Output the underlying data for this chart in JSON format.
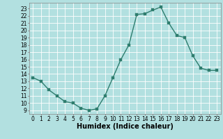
{
  "x": [
    0,
    1,
    2,
    3,
    4,
    5,
    6,
    7,
    8,
    9,
    10,
    11,
    12,
    13,
    14,
    15,
    16,
    17,
    18,
    19,
    20,
    21,
    22,
    23
  ],
  "y": [
    13.5,
    13.0,
    11.8,
    11.0,
    10.2,
    10.0,
    9.3,
    9.0,
    9.2,
    11.0,
    13.5,
    16.0,
    18.0,
    22.2,
    22.3,
    22.8,
    23.2,
    21.0,
    19.3,
    19.0,
    16.5,
    14.8,
    14.5,
    14.5
  ],
  "line_color": "#2e7d6e",
  "marker": "s",
  "markersize": 2.2,
  "linewidth": 1.0,
  "xlabel": "Humidex (Indice chaleur)",
  "xlabel_fontsize": 7,
  "ylabel_ticks": [
    9,
    10,
    11,
    12,
    13,
    14,
    15,
    16,
    17,
    18,
    19,
    20,
    21,
    22,
    23
  ],
  "xticks": [
    0,
    1,
    2,
    3,
    4,
    5,
    6,
    7,
    8,
    9,
    10,
    11,
    12,
    13,
    14,
    15,
    16,
    17,
    18,
    19,
    20,
    21,
    22,
    23
  ],
  "ylim": [
    8.5,
    23.8
  ],
  "xlim": [
    -0.5,
    23.5
  ],
  "bg_color": "#b2e0e0",
  "grid_color": "#ffffff",
  "tick_fontsize": 5.5
}
